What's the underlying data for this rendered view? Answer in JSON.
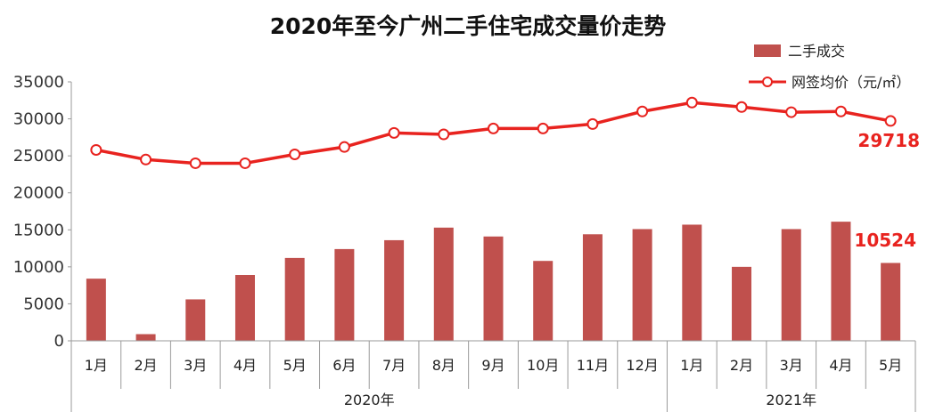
{
  "chart_data": {
    "type": "bar+line",
    "title": "2020年至今广州二手住宅成交量价走势",
    "categories": [
      "1月",
      "2月",
      "3月",
      "4月",
      "5月",
      "6月",
      "7月",
      "8月",
      "9月",
      "10月",
      "11月",
      "12月",
      "1月",
      "2月",
      "3月",
      "4月",
      "5月"
    ],
    "year_groups": [
      {
        "label": "2020年",
        "count": 12
      },
      {
        "label": "2021年",
        "count": 5
      }
    ],
    "series": [
      {
        "name": "二手成交",
        "type": "bar",
        "color": "#c0504d",
        "values": [
          8400,
          900,
          5600,
          8900,
          11200,
          12400,
          13600,
          15300,
          14100,
          10800,
          14400,
          15100,
          15700,
          10000,
          15100,
          16100,
          10524
        ]
      },
      {
        "name": "网签均价（元/㎡）",
        "type": "line",
        "color": "#e8231f",
        "values": [
          25800,
          24500,
          24000,
          24000,
          25200,
          26200,
          28100,
          27900,
          28700,
          28700,
          29300,
          31000,
          32200,
          31600,
          30900,
          31000,
          29718
        ]
      }
    ],
    "ylim": [
      0,
      35000
    ],
    "yticks": [
      "0",
      "5000",
      "10000",
      "15000",
      "20000",
      "25000",
      "30000",
      "35000"
    ],
    "callouts": {
      "price_last": "29718",
      "volume_last": "10524"
    },
    "legend_position": "top-right",
    "grid": false
  }
}
